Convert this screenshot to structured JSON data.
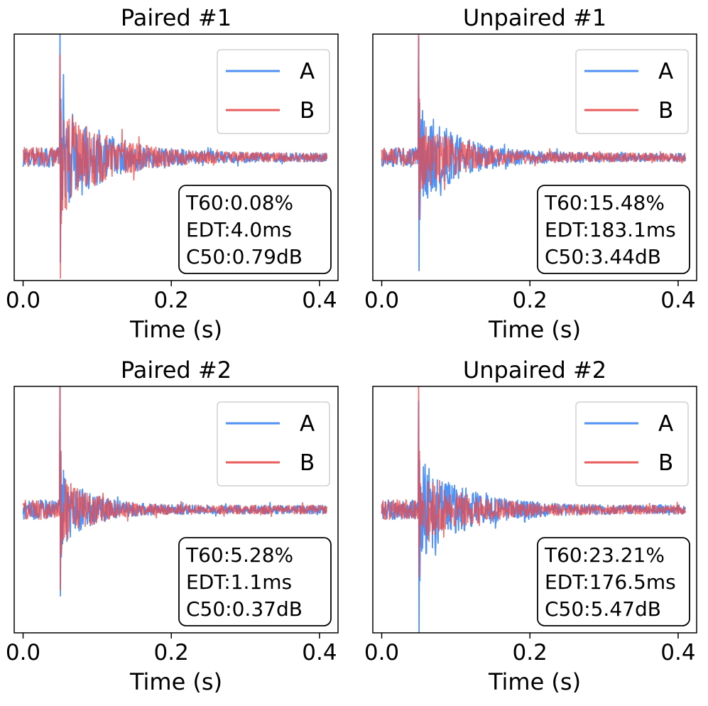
{
  "colors": {
    "A": "#3d85f5",
    "B": "#e84a4a",
    "frame": "#000000",
    "background": "#ffffff"
  },
  "chart_data": [
    {
      "type": "line",
      "title": "Paired #1",
      "xlabel": "Time (s)",
      "ylabel": "",
      "xlim": [
        -0.012,
        0.425
      ],
      "ylim": [
        -1.0,
        1.0
      ],
      "x_ticks": [
        0.0,
        0.2,
        0.4
      ],
      "x_tick_labels": [
        "0.0",
        "0.2",
        "0.4"
      ],
      "y_ticks_visible": false,
      "legend": {
        "location": "upper right",
        "entries": [
          "A",
          "B"
        ]
      },
      "stats": [
        "T60:0.08%",
        "EDT:4.0ms",
        "C50:0.79dB"
      ],
      "signal": {
        "duration": 0.41,
        "onset": 0.05,
        "decay_tau": 0.06,
        "A": {
          "name": "A",
          "peak_max": 1.05,
          "peak_min": -0.85,
          "envelope": 0.45
        },
        "B": {
          "name": "B",
          "peak_max": 0.83,
          "peak_min": -0.98,
          "envelope": 0.43
        }
      }
    },
    {
      "type": "line",
      "title": "Unpaired #1",
      "xlabel": "Time (s)",
      "ylabel": "",
      "xlim": [
        -0.012,
        0.425
      ],
      "ylim": [
        -1.0,
        1.0
      ],
      "x_ticks": [
        0.0,
        0.2,
        0.4
      ],
      "x_tick_labels": [
        "0.0",
        "0.2",
        "0.4"
      ],
      "y_ticks_visible": false,
      "legend": {
        "location": "upper right",
        "entries": [
          "A",
          "B"
        ]
      },
      "stats": [
        "T60:15.48%",
        "EDT:183.1ms",
        "C50:3.44dB"
      ],
      "signal": {
        "duration": 0.41,
        "onset": 0.05,
        "decay_tau": 0.05,
        "A": {
          "name": "A",
          "peak_max": 0.98,
          "peak_min": -0.92,
          "envelope": 0.42
        },
        "B": {
          "name": "B",
          "peak_max": 1.05,
          "peak_min": -0.5,
          "envelope": 0.3
        }
      }
    },
    {
      "type": "line",
      "title": "Paired #2",
      "xlabel": "Time (s)",
      "ylabel": "",
      "xlim": [
        -0.012,
        0.425
      ],
      "ylim": [
        -1.0,
        1.0
      ],
      "x_ticks": [
        0.0,
        0.2,
        0.4
      ],
      "x_tick_labels": [
        "0.0",
        "0.2",
        "0.4"
      ],
      "y_ticks_visible": false,
      "legend": {
        "location": "upper right",
        "entries": [
          "A",
          "B"
        ]
      },
      "stats": [
        "T60:5.28%",
        "EDT:1.1ms",
        "C50:0.37dB"
      ],
      "signal": {
        "duration": 0.41,
        "onset": 0.05,
        "decay_tau": 0.04,
        "A": {
          "name": "A",
          "peak_max": 1.05,
          "peak_min": -0.7,
          "envelope": 0.28
        },
        "B": {
          "name": "B",
          "peak_max": 1.05,
          "peak_min": -0.65,
          "envelope": 0.27
        }
      }
    },
    {
      "type": "line",
      "title": "Unpaired #2",
      "xlabel": "Time (s)",
      "ylabel": "",
      "xlim": [
        -0.012,
        0.425
      ],
      "ylim": [
        -1.0,
        1.0
      ],
      "x_ticks": [
        0.0,
        0.2,
        0.4
      ],
      "x_tick_labels": [
        "0.0",
        "0.2",
        "0.4"
      ],
      "y_ticks_visible": false,
      "legend": {
        "location": "upper right",
        "entries": [
          "A",
          "B"
        ]
      },
      "stats": [
        "T60:23.21%",
        "EDT:176.5ms",
        "C50:5.47dB"
      ],
      "signal": {
        "duration": 0.41,
        "onset": 0.05,
        "decay_tau": 0.06,
        "A": {
          "name": "A",
          "peak_max": 0.88,
          "peak_min": -1.05,
          "envelope": 0.4
        },
        "B": {
          "name": "B",
          "peak_max": 1.05,
          "peak_min": -0.55,
          "envelope": 0.28
        }
      }
    }
  ]
}
